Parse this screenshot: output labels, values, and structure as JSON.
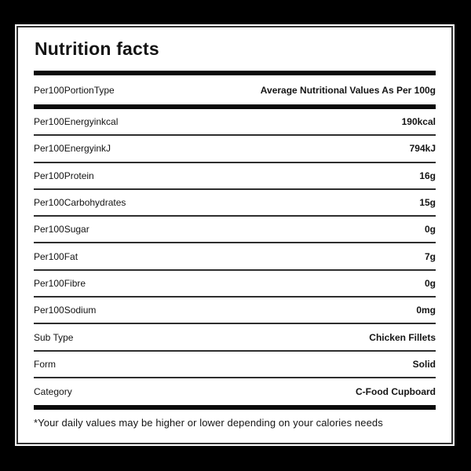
{
  "card": {
    "title": "Nutrition facts",
    "header_row": {
      "label": "Per100PortionType",
      "value": "Average Nutritional Values As Per 100g"
    },
    "rows": [
      {
        "label": "Per100Energyinkcal",
        "value": "190kcal"
      },
      {
        "label": "Per100EnergyinkJ",
        "value": "794kJ"
      },
      {
        "label": "Per100Protein",
        "value": "16g"
      },
      {
        "label": "Per100Carbohydrates",
        "value": "15g"
      },
      {
        "label": "Per100Sugar",
        "value": "0g"
      },
      {
        "label": "Per100Fat",
        "value": "7g"
      },
      {
        "label": "Per100Fibre",
        "value": "0g"
      },
      {
        "label": "Per100Sodium",
        "value": "0mg"
      },
      {
        "label": "Sub Type",
        "value": "Chicken Fillets"
      },
      {
        "label": "Form",
        "value": "Solid"
      },
      {
        "label": "Category",
        "value": "C-Food Cupboard"
      }
    ],
    "footer_note": "*Your daily values may be higher or lower depending on your calories needs"
  },
  "colors": {
    "background": "#000000",
    "card_background": "#ffffff",
    "card_border": "#333333",
    "text": "#141414",
    "bar": "#0b0b0b",
    "divider": "#2e2e2e"
  }
}
